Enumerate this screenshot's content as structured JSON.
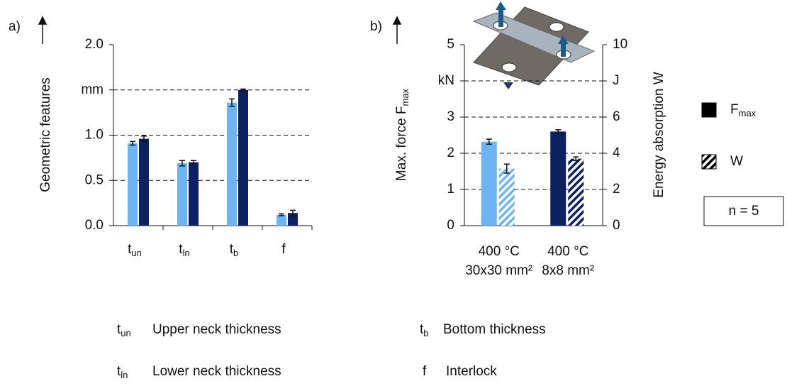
{
  "chart_data": [
    {
      "type": "bar",
      "label": "a)",
      "y_label": "Geometric features",
      "categories": [
        [
          "t",
          "un"
        ],
        [
          "t",
          "ln"
        ],
        [
          "t",
          "b"
        ],
        [
          "f"
        ]
      ],
      "category_descriptions": [
        "Upper neck thickness",
        "Lower neck thickness",
        "Bottom thickness",
        "Interlock"
      ],
      "series": [
        {
          "color": "#6cb4f2",
          "values": [
            0.91,
            0.69,
            1.36,
            0.12
          ],
          "errors": [
            0.02,
            0.03,
            0.04,
            0.01
          ]
        },
        {
          "color": "#0c2260",
          "values": [
            0.96,
            0.7,
            1.5,
            0.14
          ],
          "errors": [
            0.03,
            0.02,
            0.01,
            0.03
          ]
        }
      ],
      "ylim": [
        0,
        2
      ],
      "yticks": [
        {
          "value": 0,
          "label": "0.0"
        },
        0.5,
        {
          "value": 1,
          "label": "1.0"
        },
        {
          "value": 1.5,
          "label": "mm"
        },
        {
          "value": 2,
          "label": "2.0"
        }
      ],
      "grid": true
    },
    {
      "type": "bar",
      "label": "b)",
      "y_label": [
        "Max. force F",
        "max"
      ],
      "y2_label": "Energy absorption W",
      "categories": [
        [
          "400 °C",
          "30x30 mm²"
        ],
        [
          "400 °C",
          "8x8 mm²"
        ]
      ],
      "series": [
        {
          "name": [
            "F",
            "max"
          ],
          "color": "#000000",
          "bar_colors": [
            "#6cb4f2",
            "#0c2260"
          ],
          "values": [
            2.32,
            2.6
          ],
          "errors": [
            0.07,
            0.05
          ]
        },
        {
          "name": [
            "W"
          ],
          "color": "#000000",
          "hatch": true,
          "bar_colors": [
            "#6cb4f2",
            "#0c2260"
          ],
          "axis": "y2",
          "values": [
            3.15,
            3.7
          ],
          "errors": [
            0.25,
            0.1
          ]
        }
      ],
      "ylim": [
        0,
        5
      ],
      "yticks": [
        0,
        1,
        2,
        3,
        {
          "value": 4,
          "label": "kN"
        },
        5
      ],
      "y2lim": [
        0,
        10
      ],
      "y2ticks": [
        0,
        2,
        4,
        6,
        {
          "value": 8,
          "label": "J"
        },
        10
      ],
      "annotation": "n = 5",
      "grid": true
    }
  ]
}
